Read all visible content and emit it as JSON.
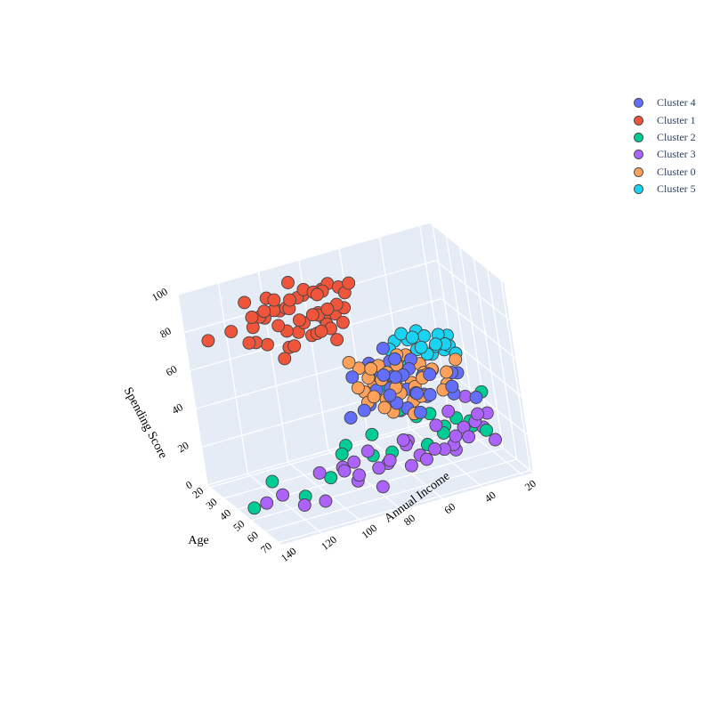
{
  "chart_data": {
    "type": "scatter3d",
    "axes": {
      "x": {
        "label": "Annual Income",
        "range": [
          15,
          140
        ],
        "ticks": [
          20,
          40,
          60,
          80,
          100,
          120,
          140
        ]
      },
      "y": {
        "label": "Age",
        "range": [
          18,
          72
        ],
        "ticks": [
          20,
          30,
          40,
          50,
          60,
          70
        ]
      },
      "z": {
        "label": "Spending Score",
        "range": [
          0,
          100
        ],
        "ticks": [
          0,
          20,
          40,
          60,
          80,
          100
        ]
      }
    },
    "grid": true,
    "legend_position": "top-right",
    "series": [
      {
        "name": "Cluster 4",
        "color": "#636efa",
        "points": [
          [
            60,
            55,
            55
          ],
          [
            62,
            50,
            52
          ],
          [
            58,
            60,
            48
          ],
          [
            65,
            45,
            50
          ],
          [
            55,
            52,
            55
          ],
          [
            63,
            48,
            45
          ],
          [
            67,
            56,
            42
          ],
          [
            54,
            62,
            46
          ],
          [
            70,
            47,
            57
          ],
          [
            59,
            40,
            60
          ],
          [
            48,
            50,
            48
          ],
          [
            72,
            52,
            49
          ],
          [
            61,
            66,
            52
          ],
          [
            57,
            44,
            46
          ],
          [
            66,
            59,
            58
          ],
          [
            52,
            56,
            43
          ],
          [
            64,
            38,
            50
          ],
          [
            69,
            62,
            47
          ],
          [
            50,
            46,
            55
          ],
          [
            75,
            50,
            41
          ],
          [
            56,
            68,
            51
          ],
          [
            62,
            58,
            40
          ],
          [
            58,
            42,
            54
          ],
          [
            68,
            42,
            56
          ],
          [
            53,
            65,
            59
          ],
          [
            63,
            70,
            45
          ],
          [
            71,
            58,
            60
          ],
          [
            55,
            48,
            42
          ],
          [
            61,
            52,
            62
          ],
          [
            78,
            44,
            53
          ],
          [
            30,
            48,
            43
          ],
          [
            35,
            52,
            47
          ],
          [
            45,
            68,
            52
          ],
          [
            85,
            62,
            48
          ],
          [
            40,
            60,
            42
          ],
          [
            88,
            55,
            41
          ],
          [
            32,
            64,
            40
          ],
          [
            74,
            66,
            55
          ]
        ]
      },
      {
        "name": "Cluster 1",
        "color": "#ef553b",
        "points": [
          [
            70,
            32,
            80
          ],
          [
            75,
            35,
            85
          ],
          [
            78,
            30,
            90
          ],
          [
            80,
            33,
            75
          ],
          [
            85,
            36,
            83
          ],
          [
            88,
            32,
            95
          ],
          [
            95,
            30,
            86
          ],
          [
            100,
            34,
            78
          ],
          [
            103,
            31,
            88
          ],
          [
            110,
            35,
            92
          ],
          [
            113,
            29,
            81
          ],
          [
            120,
            36,
            79
          ],
          [
            126,
            33,
            85
          ],
          [
            137,
            32,
            83
          ],
          [
            72,
            38,
            92
          ],
          [
            77,
            28,
            77
          ],
          [
            82,
            39,
            87
          ],
          [
            87,
            29,
            90
          ],
          [
            93,
            37,
            82
          ],
          [
            98,
            27,
            84
          ],
          [
            101,
            40,
            74
          ],
          [
            105,
            36,
            97
          ],
          [
            108,
            30,
            71
          ],
          [
            115,
            33,
            76
          ],
          [
            118,
            38,
            93
          ],
          [
            71,
            31,
            72
          ],
          [
            74,
            37,
            95
          ],
          [
            79,
            34,
            73
          ],
          [
            86,
            38,
            76
          ],
          [
            91,
            31,
            91
          ],
          [
            97,
            35,
            94
          ],
          [
            99,
            32,
            68
          ],
          [
            104,
            28,
            93
          ],
          [
            112,
            34,
            89
          ],
          [
            117,
            32,
            97
          ],
          [
            70,
            39,
            97
          ],
          [
            76,
            26,
            88
          ],
          [
            81,
            29,
            79
          ],
          [
            84,
            33,
            93
          ],
          [
            89,
            35,
            73
          ],
          [
            94,
            33,
            75
          ],
          [
            96,
            29,
            86
          ],
          [
            102,
            32,
            63
          ],
          [
            106,
            38,
            85
          ],
          [
            78,
            36,
            68
          ],
          [
            83,
            34,
            92
          ],
          [
            90,
            40,
            87
          ],
          [
            92,
            27,
            97
          ],
          [
            73,
            29,
            76
          ],
          [
            109,
            33,
            87
          ],
          [
            87,
            36,
            74
          ],
          [
            75,
            30,
            93
          ],
          [
            80,
            32,
            77
          ],
          [
            95,
            37,
            84
          ]
        ]
      },
      {
        "name": "Cluster 2",
        "color": "#00cc96",
        "points": [
          [
            20,
            48,
            30
          ],
          [
            25,
            45,
            12
          ],
          [
            30,
            52,
            20
          ],
          [
            35,
            50,
            22
          ],
          [
            40,
            48,
            18
          ],
          [
            45,
            46,
            25
          ],
          [
            50,
            49,
            12
          ],
          [
            55,
            52,
            30
          ],
          [
            60,
            47,
            32
          ],
          [
            68,
            50,
            14
          ],
          [
            75,
            46,
            12
          ],
          [
            88,
            43,
            15
          ],
          [
            99,
            50,
            10
          ],
          [
            113,
            51,
            5
          ],
          [
            126,
            48,
            15
          ],
          [
            137,
            49,
            5
          ],
          [
            78,
            53,
            28
          ],
          [
            33,
            47,
            36
          ],
          [
            60,
            40,
            40
          ],
          [
            25,
            56,
            16
          ],
          [
            85,
            42,
            18
          ],
          [
            45,
            55,
            20
          ]
        ]
      },
      {
        "name": "Cluster 3",
        "color": "#ab63fa",
        "points": [
          [
            20,
            50,
            20
          ],
          [
            24,
            52,
            15
          ],
          [
            28,
            48,
            30
          ],
          [
            32,
            60,
            25
          ],
          [
            35,
            55,
            20
          ],
          [
            39,
            65,
            22
          ],
          [
            42,
            58,
            12
          ],
          [
            45,
            62,
            18
          ],
          [
            48,
            55,
            25
          ],
          [
            52,
            66,
            20
          ],
          [
            56,
            52,
            10
          ],
          [
            60,
            64,
            16
          ],
          [
            63,
            56,
            22
          ],
          [
            67,
            61,
            24
          ],
          [
            70,
            68,
            18
          ],
          [
            73,
            54,
            12
          ],
          [
            77,
            63,
            20
          ],
          [
            80,
            58,
            14
          ],
          [
            84,
            66,
            10
          ],
          [
            88,
            52,
            16
          ],
          [
            92,
            60,
            12
          ],
          [
            96,
            56,
            18
          ],
          [
            100,
            64,
            22
          ],
          [
            104,
            50,
            14
          ],
          [
            110,
            62,
            8
          ],
          [
            118,
            58,
            6
          ],
          [
            126,
            55,
            12
          ],
          [
            137,
            60,
            14
          ],
          [
            36,
            70,
            36
          ],
          [
            48,
            70,
            28
          ],
          [
            60,
            72,
            26
          ],
          [
            72,
            68,
            32
          ],
          [
            58,
            45,
            30
          ],
          [
            44,
            60,
            34
          ],
          [
            26,
            64,
            16
          ],
          [
            84,
            58,
            24
          ],
          [
            95,
            67,
            20
          ]
        ]
      },
      {
        "name": "Cluster 0",
        "color": "#ffa15a",
        "points": [
          [
            40,
            45,
            46
          ],
          [
            43,
            50,
            50
          ],
          [
            46,
            48,
            48
          ],
          [
            48,
            55,
            52
          ],
          [
            50,
            42,
            55
          ],
          [
            52,
            47,
            44
          ],
          [
            54,
            53,
            46
          ],
          [
            56,
            44,
            40
          ],
          [
            58,
            57,
            42
          ],
          [
            60,
            51,
            58
          ],
          [
            62,
            46,
            50
          ],
          [
            63,
            56,
            47
          ],
          [
            64,
            49,
            54
          ],
          [
            65,
            44,
            49
          ],
          [
            66,
            58,
            52
          ],
          [
            67,
            48,
            58
          ],
          [
            68,
            52,
            43
          ],
          [
            70,
            54,
            55
          ],
          [
            71,
            45,
            51
          ],
          [
            72,
            50,
            59
          ],
          [
            75,
            47,
            46
          ],
          [
            76,
            56,
            49
          ],
          [
            78,
            43,
            60
          ],
          [
            80,
            51,
            52
          ],
          [
            38,
            52,
            42
          ],
          [
            42,
            60,
            54
          ],
          [
            55,
            62,
            56
          ],
          [
            62,
            63,
            40
          ],
          [
            66,
            40,
            44
          ],
          [
            74,
            60,
            45
          ],
          [
            52,
            50,
            38
          ],
          [
            45,
            44,
            50
          ],
          [
            30,
            48,
            50
          ],
          [
            57,
            47,
            60
          ],
          [
            69,
            58,
            40
          ],
          [
            77,
            52,
            44
          ],
          [
            73,
            42,
            55
          ],
          [
            59,
            66,
            50
          ],
          [
            46,
            62,
            47
          ],
          [
            53,
            40,
            52
          ]
        ]
      },
      {
        "name": "Cluster 5",
        "color": "#19d3f3",
        "points": [
          [
            18,
            28,
            38
          ],
          [
            19,
            25,
            46
          ],
          [
            20,
            27,
            42
          ],
          [
            21,
            24,
            44
          ],
          [
            22,
            26,
            40
          ],
          [
            23,
            29,
            45
          ],
          [
            24,
            23,
            41
          ],
          [
            25,
            28,
            50
          ],
          [
            26,
            26,
            43
          ],
          [
            27,
            24,
            38
          ],
          [
            28,
            30,
            47
          ],
          [
            30,
            25,
            49
          ],
          [
            31,
            27,
            41
          ],
          [
            33,
            24,
            52
          ],
          [
            34,
            28,
            46
          ],
          [
            35,
            26,
            44
          ],
          [
            37,
            23,
            48
          ],
          [
            38,
            29,
            53
          ],
          [
            40,
            25,
            42
          ],
          [
            42,
            27,
            55
          ],
          [
            44,
            24,
            50
          ],
          [
            46,
            30,
            44
          ],
          [
            48,
            26,
            48
          ]
        ]
      }
    ]
  }
}
